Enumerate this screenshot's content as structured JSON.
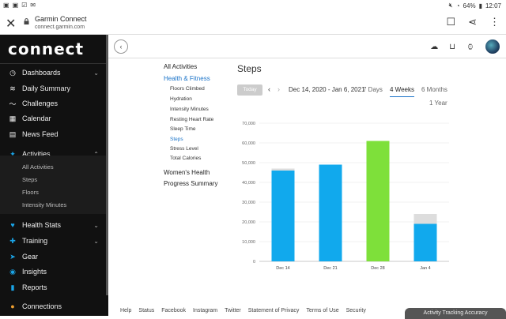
{
  "status": {
    "icons_left": [
      "image-icon",
      "image-icon",
      "check-icon",
      "mail-icon"
    ],
    "battery": "64%",
    "time": "12:07"
  },
  "browser": {
    "title": "Garmin Connect",
    "url": "connect.garmin.com"
  },
  "sidebar": {
    "logo": "connect",
    "items": [
      {
        "label": "Dashboards",
        "icon": "dashboard-icon"
      },
      {
        "label": "Daily Summary",
        "icon": "layers-icon"
      },
      {
        "label": "Challenges",
        "icon": "challenges-icon"
      },
      {
        "label": "Calendar",
        "icon": "calendar-icon"
      },
      {
        "label": "News Feed",
        "icon": "news-icon"
      },
      {
        "label": "Activities",
        "icon": "activity-icon"
      },
      {
        "label": "Health Stats",
        "icon": "heart-icon"
      },
      {
        "label": "Training",
        "icon": "training-icon"
      },
      {
        "label": "Gear",
        "icon": "shoe-icon"
      },
      {
        "label": "Insights",
        "icon": "bulb-icon"
      },
      {
        "label": "Reports",
        "icon": "reports-icon"
      },
      {
        "label": "Connections",
        "icon": "people-icon"
      }
    ],
    "activities_sub": [
      "All Activities",
      "Steps",
      "Floors",
      "Intensity Minutes"
    ]
  },
  "subnav": {
    "all_activities": "All Activities",
    "health_fitness": "Health & Fitness",
    "items": [
      "Floors Climbed",
      "Hydration",
      "Intensity Minutes",
      "Resting Heart Rate",
      "Sleep Time",
      "Steps",
      "Stress Level",
      "Total Calories"
    ],
    "womens_health": "Women's Health",
    "progress_summary": "Progress Summary"
  },
  "report": {
    "title": "Steps",
    "today": "Today",
    "range": "Dec 14, 2020 - Jan 6, 2021",
    "periods": [
      "7 Days",
      "4 Weeks",
      "6 Months",
      "1 Year"
    ],
    "active_period": "4 Weeks"
  },
  "chart_data": {
    "type": "bar",
    "categories": [
      "Dec 14",
      "Dec 21",
      "Dec 28",
      "Jan 4"
    ],
    "series": [
      {
        "values": [
          46000,
          49000,
          61000,
          19000
        ]
      },
      {
        "values": [
          47000,
          49000,
          61000,
          24000
        ]
      }
    ],
    "colors": {
      "bar": "#11a9ed",
      "highlight": "#7ee03a",
      "goal": "#dddddd"
    },
    "ylim": [
      0,
      70000
    ],
    "yticks": [
      "0",
      "10,000",
      "20,000",
      "30,000",
      "40,000",
      "50,000",
      "60,000",
      "70,000"
    ],
    "highlight_index": 2,
    "grid": true
  },
  "footer": {
    "links": [
      "Help",
      "Status",
      "Facebook",
      "Instagram",
      "Twitter",
      "Statement of Privacy",
      "Terms of Use",
      "Security"
    ],
    "toast": "Activity Tracking Accuracy"
  }
}
